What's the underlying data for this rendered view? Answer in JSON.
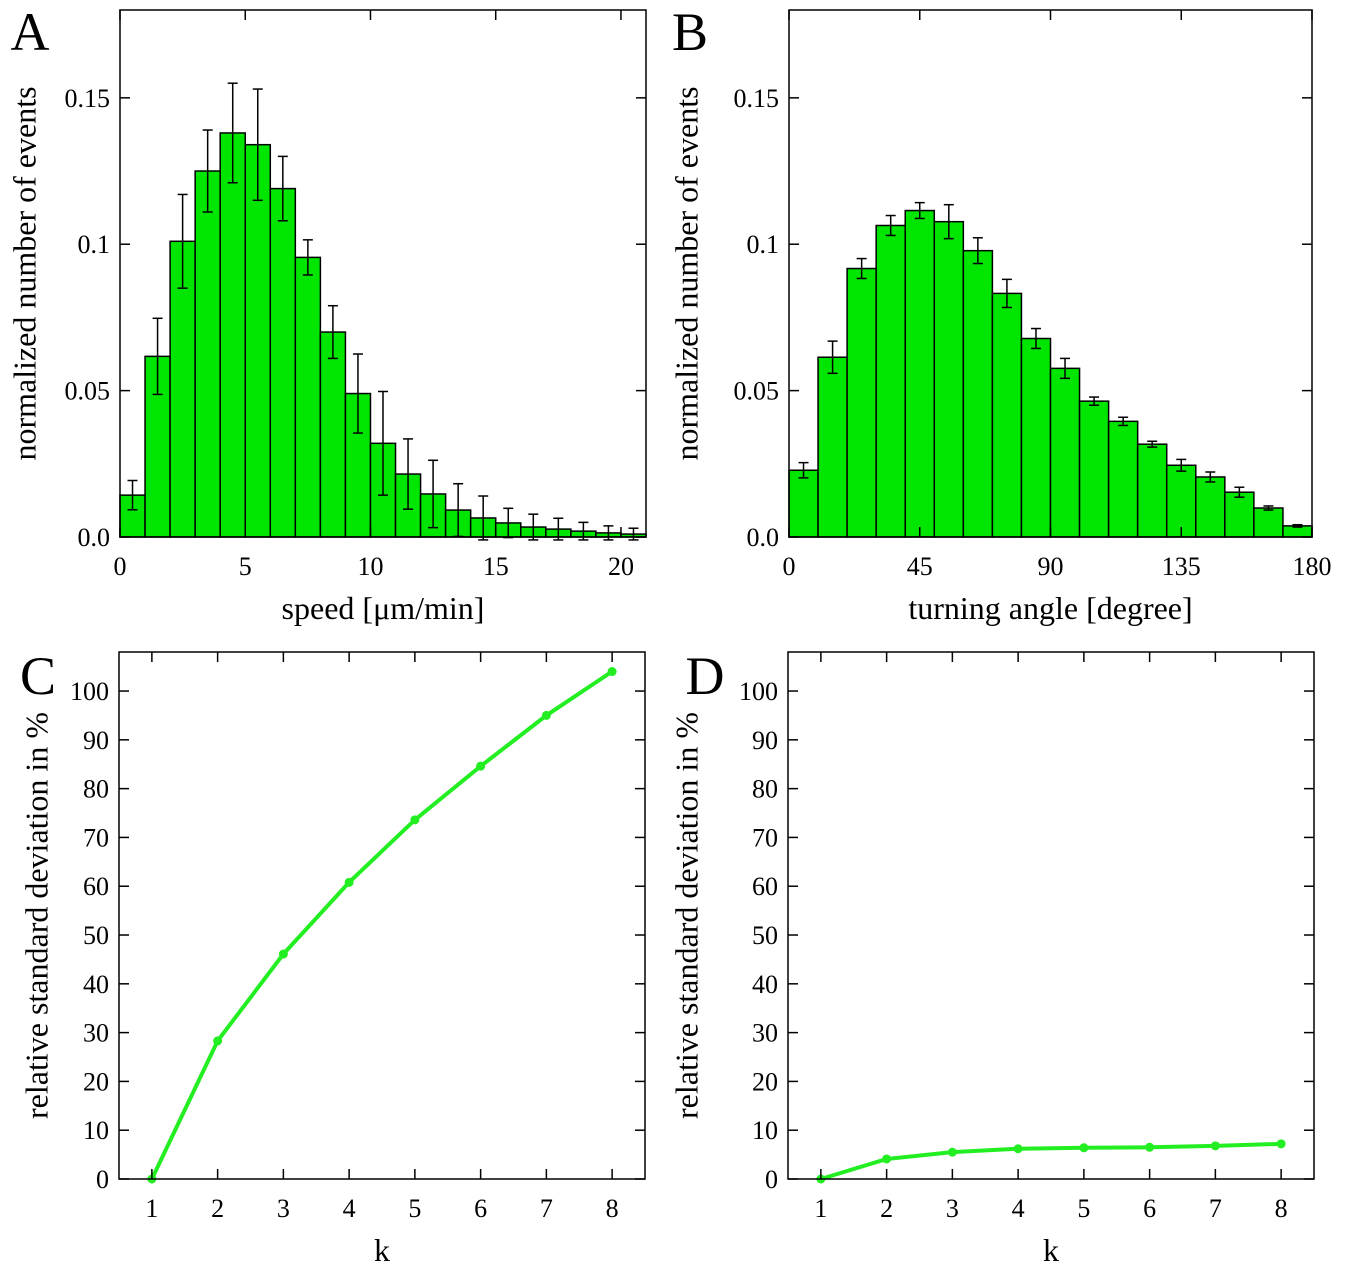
{
  "chart_data": [
    {
      "type": "histogram",
      "panel_label": "A",
      "xlabel": "speed [μm/min]",
      "ylabel": "normalized number of events",
      "color": "#00e600",
      "bins": [
        0,
        1,
        2,
        3,
        4,
        5,
        6,
        7,
        8,
        9,
        10,
        11,
        12,
        13,
        14,
        15,
        16,
        17,
        18,
        19,
        20,
        21
      ],
      "values": [
        0.0143,
        0.0617,
        0.101,
        0.125,
        0.138,
        0.134,
        0.119,
        0.0955,
        0.07,
        0.049,
        0.032,
        0.0215,
        0.0147,
        0.0092,
        0.0065,
        0.0048,
        0.0034,
        0.0027,
        0.002,
        0.0014,
        0.001
      ],
      "errors": [
        0.005,
        0.013,
        0.016,
        0.014,
        0.017,
        0.019,
        0.011,
        0.006,
        0.009,
        0.0135,
        0.0177,
        0.012,
        0.0115,
        0.009,
        0.0075,
        0.005,
        0.0044,
        0.0037,
        0.003,
        0.0024,
        0.002
      ],
      "xlim": [
        0,
        21
      ],
      "ylim": [
        0,
        0.18
      ],
      "xticks": [
        0,
        5,
        10,
        15,
        20
      ],
      "yticks": [
        {
          "value": 0,
          "label": "0.0"
        },
        0.05,
        0.1,
        0.15
      ]
    },
    {
      "type": "histogram",
      "panel_label": "B",
      "xlabel": "turning angle [degree]",
      "ylabel": "normalized number of events",
      "color": "#00e600",
      "bins": [
        0,
        10,
        20,
        30,
        40,
        50,
        60,
        70,
        80,
        90,
        100,
        110,
        120,
        130,
        140,
        150,
        160,
        170,
        180
      ],
      "values": [
        0.0228,
        0.0614,
        0.0917,
        0.1064,
        0.1115,
        0.1077,
        0.0978,
        0.0832,
        0.0678,
        0.0576,
        0.0464,
        0.0395,
        0.0317,
        0.0245,
        0.0205,
        0.0153,
        0.0099,
        0.0038
      ],
      "errors": [
        0.0026,
        0.0055,
        0.0034,
        0.0034,
        0.0027,
        0.0058,
        0.0044,
        0.0048,
        0.0034,
        0.0034,
        0.0014,
        0.0014,
        0.001,
        0.002,
        0.0017,
        0.0017,
        0.0007,
        0.0004
      ],
      "xlim": [
        0,
        180
      ],
      "ylim": [
        0,
        0.18
      ],
      "xticks": [
        0,
        45,
        90,
        135,
        180
      ],
      "yticks": [
        {
          "value": 0,
          "label": "0.0"
        },
        0.05,
        0.1,
        0.15
      ]
    },
    {
      "type": "line",
      "panel_label": "C",
      "xlabel": "k",
      "ylabel": "relative standard deviation in %",
      "color": "#22ee22",
      "x": [
        1,
        2,
        3,
        4,
        5,
        6,
        7,
        8
      ],
      "values": [
        0,
        28.3,
        46.1,
        60.8,
        73.6,
        84.6,
        95,
        104
      ],
      "xlim": [
        0.5,
        8.5
      ],
      "ylim": [
        0,
        108
      ],
      "xticks": [
        1,
        2,
        3,
        4,
        5,
        6,
        7,
        8
      ],
      "yticks": [
        0,
        10,
        20,
        30,
        40,
        50,
        60,
        70,
        80,
        90,
        100
      ]
    },
    {
      "type": "line",
      "panel_label": "D",
      "xlabel": "k",
      "ylabel": "relative standard deviation in %",
      "color": "#22ee22",
      "x": [
        1,
        2,
        3,
        4,
        5,
        6,
        7,
        8
      ],
      "values": [
        0,
        4.1,
        5.5,
        6.2,
        6.4,
        6.5,
        6.8,
        7.2
      ],
      "xlim": [
        0.5,
        8.5
      ],
      "ylim": [
        0,
        108
      ],
      "xticks": [
        1,
        2,
        3,
        4,
        5,
        6,
        7,
        8
      ],
      "yticks": [
        0,
        10,
        20,
        30,
        40,
        50,
        60,
        70,
        80,
        90,
        100
      ]
    }
  ]
}
